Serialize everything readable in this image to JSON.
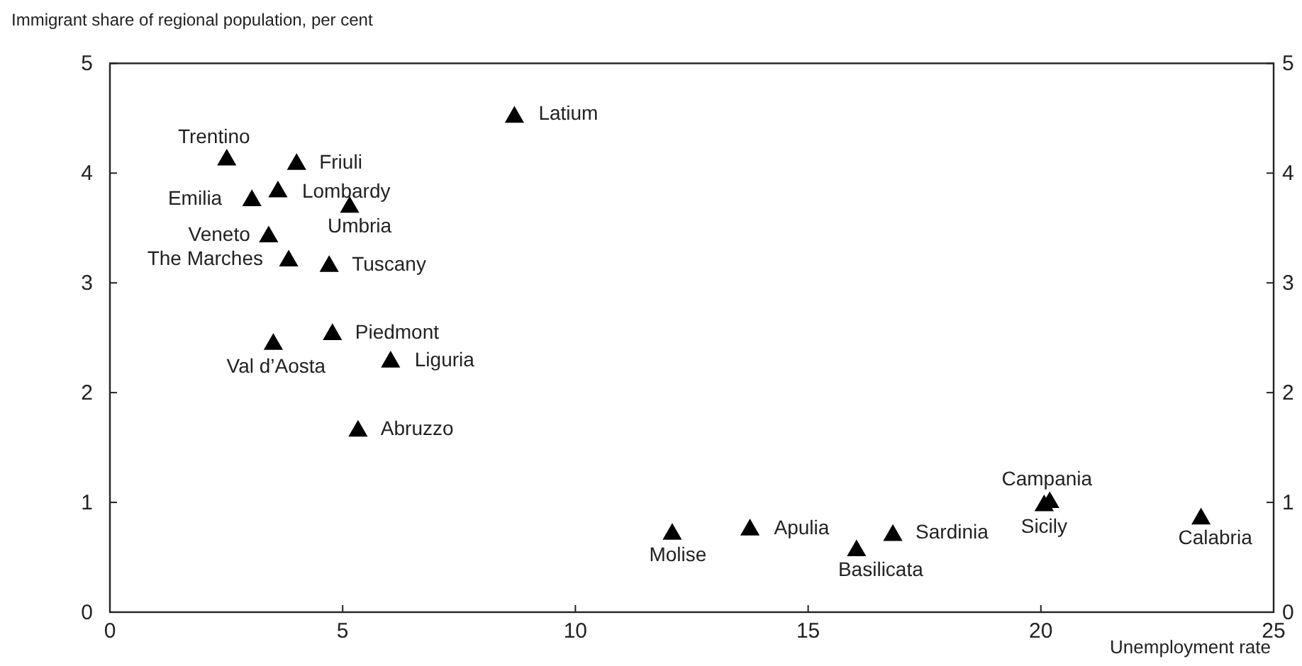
{
  "chart_data": {
    "type": "scatter",
    "ylabel": "Immigrant share of regional population, per cent",
    "xlabel": "Unemployment rate",
    "x": [
      2.51,
      4.01,
      3.61,
      3.05,
      5.15,
      3.41,
      3.84,
      4.71,
      4.78,
      3.51,
      6.03,
      5.33,
      8.69,
      12.08,
      13.75,
      16.04,
      16.82,
      20.07,
      20.19,
      23.44
    ],
    "series": [
      {
        "color": "#000000",
        "values": [
          4.12,
          4.08,
          3.83,
          3.75,
          3.69,
          3.42,
          3.2,
          3.15,
          2.53,
          2.44,
          2.28,
          1.65,
          4.51,
          0.71,
          0.75,
          0.56,
          0.7,
          0.97,
          1.0,
          0.85
        ]
      }
    ],
    "annotations": [
      {
        "text": "Trentino",
        "x": 2.51,
        "y": 4.12
      },
      {
        "text": "Friuli",
        "x": 4.01,
        "y": 4.08
      },
      {
        "text": "Lombardy",
        "x": 3.61,
        "y": 3.83
      },
      {
        "text": "Emilia",
        "x": 3.05,
        "y": 3.75
      },
      {
        "text": "Umbria",
        "x": 5.15,
        "y": 3.69
      },
      {
        "text": "Veneto",
        "x": 3.41,
        "y": 3.42
      },
      {
        "text": "The Marches",
        "x": 3.84,
        "y": 3.2
      },
      {
        "text": "Tuscany",
        "x": 4.71,
        "y": 3.15
      },
      {
        "text": "Piedmont",
        "x": 4.78,
        "y": 2.53
      },
      {
        "text": "Val d’Aosta",
        "x": 3.51,
        "y": 2.44
      },
      {
        "text": "Liguria",
        "x": 6.03,
        "y": 2.28
      },
      {
        "text": "Abruzzo",
        "x": 5.33,
        "y": 1.65
      },
      {
        "text": "Latium",
        "x": 8.69,
        "y": 4.51
      },
      {
        "text": "Molise",
        "x": 12.08,
        "y": 0.71
      },
      {
        "text": "Apulia",
        "x": 13.75,
        "y": 0.75
      },
      {
        "text": "Basilicata",
        "x": 16.04,
        "y": 0.56
      },
      {
        "text": "Sardinia",
        "x": 16.82,
        "y": 0.7
      },
      {
        "text": "Sicily",
        "x": 20.07,
        "y": 0.97
      },
      {
        "text": "Campania",
        "x": 20.19,
        "y": 1.0
      },
      {
        "text": "Calabria",
        "x": 23.44,
        "y": 0.85
      }
    ],
    "xlim": [
      0,
      25
    ],
    "xticks": [
      0,
      5,
      10,
      15,
      20,
      25
    ],
    "ylim": [
      0,
      5
    ],
    "yticks": [
      0,
      1,
      2,
      3,
      4,
      5
    ],
    "y2lim": [
      0,
      5
    ],
    "y2ticks": [
      0,
      1,
      2,
      3,
      4,
      5
    ],
    "marker": "triangle"
  }
}
